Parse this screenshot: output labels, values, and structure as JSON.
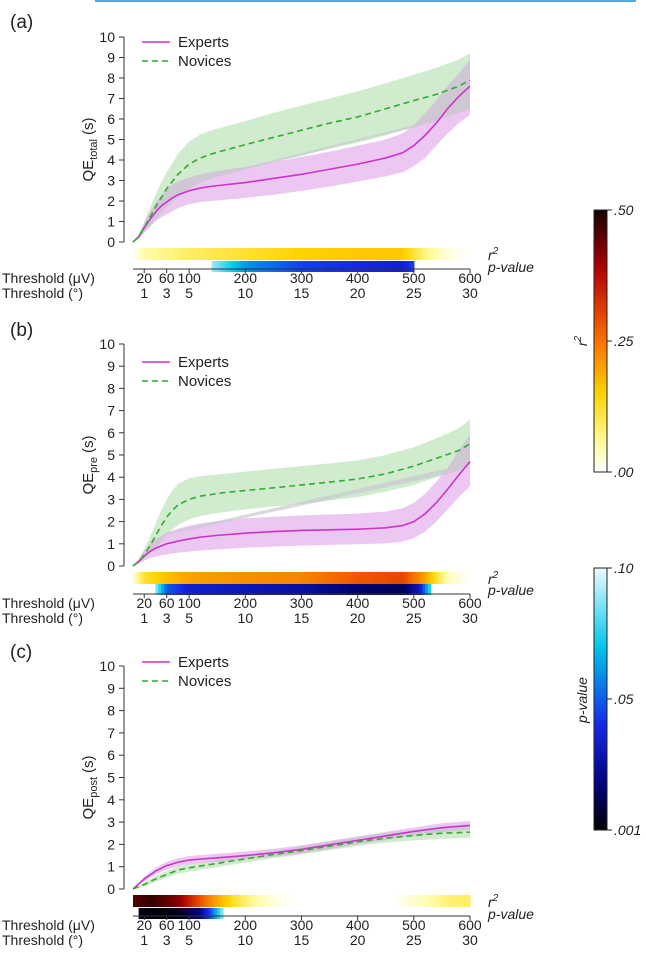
{
  "colors": {
    "experts": "#cc33cc",
    "experts_band": "#e4b4ec",
    "novices": "#33aa33",
    "novices_band": "#c8e8c4",
    "overlap_band": "#c9c9cf",
    "top_rule": "#5aa8d8"
  },
  "chart_data": [
    {
      "type": "line",
      "panel_label": "(a)",
      "ylabel_main": "QE",
      "ylabel_sub": "total",
      "ylabel_unit": "(s)",
      "ylim": [
        0,
        10
      ],
      "xlim": [
        0,
        600
      ],
      "y_ticks": [
        "0",
        "1",
        "2",
        "3",
        "4",
        "5",
        "6",
        "7",
        "8",
        "9",
        "10"
      ],
      "legend": [
        "Experts",
        "Novices"
      ],
      "series": [
        {
          "name": "Experts",
          "x": [
            0,
            10,
            20,
            30,
            40,
            50,
            60,
            70,
            80,
            100,
            120,
            140,
            160,
            180,
            200,
            250,
            300,
            350,
            400,
            450,
            480,
            500,
            520,
            540,
            560,
            580,
            600
          ],
          "values": [
            0,
            0.25,
            0.7,
            1.1,
            1.45,
            1.75,
            1.95,
            2.15,
            2.3,
            2.5,
            2.63,
            2.72,
            2.78,
            2.84,
            2.9,
            3.1,
            3.3,
            3.55,
            3.8,
            4.1,
            4.35,
            4.7,
            5.2,
            5.8,
            6.5,
            7.1,
            7.6
          ],
          "band_low": [
            0,
            0.15,
            0.45,
            0.75,
            1.0,
            1.2,
            1.35,
            1.5,
            1.65,
            1.85,
            1.95,
            2.0,
            2.05,
            2.1,
            2.15,
            2.3,
            2.5,
            2.7,
            2.95,
            3.2,
            3.4,
            3.7,
            4.1,
            4.7,
            5.3,
            5.8,
            6.2
          ],
          "band_high": [
            0,
            0.35,
            0.95,
            1.45,
            1.9,
            2.25,
            2.55,
            2.8,
            2.95,
            3.15,
            3.3,
            3.42,
            3.5,
            3.58,
            3.65,
            3.9,
            4.15,
            4.4,
            4.7,
            5.0,
            5.3,
            5.7,
            6.3,
            6.9,
            7.6,
            8.2,
            8.9
          ]
        },
        {
          "name": "Novices",
          "x": [
            0,
            10,
            20,
            30,
            40,
            50,
            60,
            70,
            80,
            100,
            120,
            140,
            160,
            180,
            200,
            250,
            300,
            350,
            400,
            450,
            500,
            540,
            580,
            600
          ],
          "values": [
            0,
            0.25,
            0.7,
            1.2,
            1.7,
            2.15,
            2.6,
            2.95,
            3.3,
            3.8,
            4.1,
            4.3,
            4.45,
            4.6,
            4.75,
            5.1,
            5.45,
            5.8,
            6.1,
            6.5,
            6.9,
            7.2,
            7.6,
            7.9
          ],
          "band_low": [
            0,
            0.15,
            0.45,
            0.75,
            1.1,
            1.4,
            1.7,
            1.95,
            2.2,
            2.6,
            2.9,
            3.1,
            3.25,
            3.4,
            3.55,
            3.9,
            4.2,
            4.55,
            4.85,
            5.2,
            5.6,
            5.9,
            6.3,
            6.5
          ],
          "band_high": [
            0,
            0.35,
            0.95,
            1.65,
            2.3,
            2.9,
            3.4,
            3.85,
            4.3,
            4.9,
            5.25,
            5.45,
            5.6,
            5.75,
            5.9,
            6.3,
            6.65,
            7.0,
            7.35,
            7.75,
            8.15,
            8.5,
            8.9,
            9.2
          ]
        }
      ],
      "r2_strip": {
        "label": "r",
        "label_sup": "2",
        "stops": [
          {
            "x": 0,
            "r2": 0.0
          },
          {
            "x": 20,
            "r2": 0.05
          },
          {
            "x": 100,
            "r2": 0.09
          },
          {
            "x": 200,
            "r2": 0.12
          },
          {
            "x": 300,
            "r2": 0.15
          },
          {
            "x": 400,
            "r2": 0.16
          },
          {
            "x": 480,
            "r2": 0.16
          },
          {
            "x": 520,
            "r2": 0.07
          },
          {
            "x": 560,
            "r2": 0.02
          },
          {
            "x": 600,
            "r2": 0.0
          }
        ]
      },
      "p_strip": {
        "label": "p-value",
        "stops": [
          {
            "x": 140,
            "p": 0.09
          },
          {
            "x": 200,
            "p": 0.06
          },
          {
            "x": 300,
            "p": 0.045
          },
          {
            "x": 400,
            "p": 0.04
          },
          {
            "x": 480,
            "p": 0.035
          },
          {
            "x": 500,
            "p": 0.045
          }
        ]
      },
      "x_ticks_uv": [
        "20",
        "60",
        "100",
        "200",
        "300",
        "400",
        "500",
        "600"
      ],
      "x_ticks_deg": [
        "1",
        "3",
        "5",
        "10",
        "15",
        "20",
        "25",
        "30"
      ],
      "x_label_uv": "Threshold (μV)",
      "x_label_deg": "Threshold (°)"
    },
    {
      "type": "line",
      "panel_label": "(b)",
      "ylabel_main": "QE",
      "ylabel_sub": "pre",
      "ylabel_unit": "(s)",
      "ylim": [
        0,
        10
      ],
      "xlim": [
        0,
        600
      ],
      "y_ticks": [
        "0",
        "1",
        "2",
        "3",
        "4",
        "5",
        "6",
        "7",
        "8",
        "9",
        "10"
      ],
      "legend": [
        "Experts",
        "Novices"
      ],
      "series": [
        {
          "name": "Experts",
          "x": [
            0,
            10,
            20,
            30,
            40,
            50,
            60,
            80,
            100,
            120,
            150,
            200,
            250,
            300,
            350,
            400,
            450,
            480,
            500,
            520,
            540,
            560,
            580,
            600
          ],
          "values": [
            0,
            0.2,
            0.45,
            0.65,
            0.8,
            0.9,
            1.0,
            1.12,
            1.22,
            1.3,
            1.38,
            1.48,
            1.55,
            1.6,
            1.63,
            1.66,
            1.72,
            1.82,
            2.0,
            2.35,
            2.85,
            3.45,
            4.1,
            4.7
          ],
          "band_low": [
            0,
            0.1,
            0.25,
            0.35,
            0.42,
            0.48,
            0.52,
            0.6,
            0.65,
            0.7,
            0.75,
            0.82,
            0.88,
            0.92,
            0.95,
            0.98,
            1.02,
            1.1,
            1.25,
            1.55,
            2.0,
            2.55,
            3.1,
            3.6
          ],
          "band_high": [
            0,
            0.3,
            0.7,
            1.0,
            1.2,
            1.35,
            1.5,
            1.68,
            1.82,
            1.92,
            2.02,
            2.15,
            2.22,
            2.28,
            2.32,
            2.36,
            2.45,
            2.6,
            2.85,
            3.25,
            3.8,
            4.4,
            5.2,
            5.9
          ]
        },
        {
          "name": "Novices",
          "x": [
            0,
            10,
            20,
            30,
            40,
            50,
            60,
            70,
            80,
            100,
            120,
            140,
            160,
            200,
            250,
            300,
            350,
            400,
            450,
            500,
            540,
            580,
            600
          ],
          "values": [
            0,
            0.2,
            0.5,
            0.9,
            1.35,
            1.8,
            2.2,
            2.5,
            2.75,
            3.0,
            3.15,
            3.22,
            3.3,
            3.4,
            3.52,
            3.65,
            3.78,
            3.92,
            4.15,
            4.5,
            4.85,
            5.2,
            5.5
          ],
          "band_low": [
            0,
            0.1,
            0.3,
            0.55,
            0.8,
            1.1,
            1.4,
            1.65,
            1.85,
            2.1,
            2.25,
            2.35,
            2.42,
            2.55,
            2.68,
            2.8,
            2.95,
            3.1,
            3.35,
            3.65,
            4.0,
            4.3,
            4.6
          ],
          "band_high": [
            0,
            0.3,
            0.75,
            1.3,
            1.9,
            2.5,
            3.0,
            3.4,
            3.7,
            3.95,
            4.05,
            4.1,
            4.15,
            4.25,
            4.38,
            4.5,
            4.62,
            4.75,
            5.0,
            5.35,
            5.75,
            6.2,
            6.6
          ]
        }
      ],
      "r2_strip": {
        "label": "r",
        "label_sup": "2",
        "stops": [
          {
            "x": 0,
            "r2": 0.02
          },
          {
            "x": 20,
            "r2": 0.12
          },
          {
            "x": 60,
            "r2": 0.17
          },
          {
            "x": 100,
            "r2": 0.2
          },
          {
            "x": 200,
            "r2": 0.22
          },
          {
            "x": 300,
            "r2": 0.23
          },
          {
            "x": 400,
            "r2": 0.28
          },
          {
            "x": 480,
            "r2": 0.3
          },
          {
            "x": 520,
            "r2": 0.2
          },
          {
            "x": 560,
            "r2": 0.04
          },
          {
            "x": 600,
            "r2": 0.0
          }
        ]
      },
      "p_strip": {
        "label": "p-value",
        "stops": [
          {
            "x": 40,
            "p": 0.09
          },
          {
            "x": 60,
            "p": 0.05
          },
          {
            "x": 100,
            "p": 0.035
          },
          {
            "x": 200,
            "p": 0.03
          },
          {
            "x": 300,
            "p": 0.025
          },
          {
            "x": 400,
            "p": 0.015
          },
          {
            "x": 480,
            "p": 0.012
          },
          {
            "x": 510,
            "p": 0.03
          },
          {
            "x": 530,
            "p": 0.08
          }
        ]
      },
      "x_ticks_uv": [
        "20",
        "60",
        "100",
        "200",
        "300",
        "400",
        "500",
        "600"
      ],
      "x_ticks_deg": [
        "1",
        "3",
        "5",
        "10",
        "15",
        "20",
        "25",
        "30"
      ],
      "x_label_uv": "Threshold (μV)",
      "x_label_deg": "Threshold (°)"
    },
    {
      "type": "line",
      "panel_label": "(c)",
      "ylabel_main": "QE",
      "ylabel_sub": "post",
      "ylabel_unit": "(s)",
      "ylim": [
        0,
        10
      ],
      "xlim": [
        0,
        600
      ],
      "y_ticks": [
        "0",
        "1",
        "2",
        "3",
        "4",
        "5",
        "6",
        "7",
        "8",
        "9",
        "10"
      ],
      "legend": [
        "Experts",
        "Novices"
      ],
      "series": [
        {
          "name": "Experts",
          "x": [
            0,
            20,
            40,
            60,
            80,
            100,
            150,
            200,
            250,
            300,
            350,
            400,
            450,
            500,
            550,
            600
          ],
          "values": [
            0,
            0.45,
            0.8,
            1.05,
            1.2,
            1.3,
            1.4,
            1.5,
            1.62,
            1.78,
            1.98,
            2.18,
            2.38,
            2.58,
            2.75,
            2.85
          ],
          "band_low": [
            0,
            0.35,
            0.65,
            0.88,
            1.02,
            1.12,
            1.22,
            1.32,
            1.45,
            1.6,
            1.8,
            2.0,
            2.2,
            2.4,
            2.55,
            2.65
          ],
          "band_high": [
            0,
            0.55,
            0.95,
            1.22,
            1.38,
            1.48,
            1.58,
            1.68,
            1.8,
            1.96,
            2.16,
            2.36,
            2.56,
            2.76,
            2.95,
            3.05
          ]
        },
        {
          "name": "Novices",
          "x": [
            0,
            20,
            40,
            60,
            80,
            100,
            150,
            200,
            250,
            300,
            350,
            400,
            450,
            500,
            550,
            600
          ],
          "values": [
            0,
            0.2,
            0.45,
            0.65,
            0.85,
            0.95,
            1.15,
            1.35,
            1.55,
            1.72,
            1.92,
            2.12,
            2.28,
            2.4,
            2.5,
            2.55
          ],
          "band_low": [
            0,
            0.12,
            0.32,
            0.5,
            0.68,
            0.78,
            0.98,
            1.18,
            1.38,
            1.55,
            1.74,
            1.94,
            2.08,
            2.18,
            2.25,
            2.3
          ],
          "band_high": [
            0,
            0.28,
            0.58,
            0.8,
            1.02,
            1.12,
            1.32,
            1.52,
            1.72,
            1.9,
            2.12,
            2.32,
            2.5,
            2.64,
            2.75,
            2.82
          ]
        }
      ],
      "r2_strip": {
        "label": "r",
        "label_sup": "2",
        "stops": [
          {
            "x": 0,
            "r2": 0.45
          },
          {
            "x": 30,
            "r2": 0.48
          },
          {
            "x": 80,
            "r2": 0.42
          },
          {
            "x": 100,
            "r2": 0.35
          },
          {
            "x": 140,
            "r2": 0.22
          },
          {
            "x": 180,
            "r2": 0.12
          },
          {
            "x": 220,
            "r2": 0.05
          },
          {
            "x": 260,
            "r2": 0.01
          },
          {
            "x": 300,
            "r2": 0.0
          },
          {
            "x": 460,
            "r2": 0.0
          },
          {
            "x": 520,
            "r2": 0.04
          },
          {
            "x": 560,
            "r2": 0.08
          },
          {
            "x": 600,
            "r2": 0.09
          }
        ]
      },
      "p_strip": {
        "label": "p-value",
        "stops": [
          {
            "x": 10,
            "p": 0.002
          },
          {
            "x": 60,
            "p": 0.002
          },
          {
            "x": 90,
            "p": 0.005
          },
          {
            "x": 120,
            "p": 0.02
          },
          {
            "x": 140,
            "p": 0.05
          },
          {
            "x": 160,
            "p": 0.09
          }
        ]
      },
      "x_ticks_uv": [
        "20",
        "60",
        "100",
        "200",
        "300",
        "400",
        "500",
        "600"
      ],
      "x_ticks_deg": [
        "1",
        "3",
        "5",
        "10",
        "15",
        "20",
        "25",
        "30"
      ],
      "x_label_uv": "Threshold (μV)",
      "x_label_deg": "Threshold (°)"
    }
  ],
  "colorbars": [
    {
      "name": "r2",
      "label": "r",
      "label_sup": "2",
      "ticks": [
        ".50",
        ".25",
        ".00"
      ]
    },
    {
      "name": "p",
      "label": "p-value",
      "ticks": [
        ".10",
        ".05",
        ".001"
      ]
    }
  ]
}
